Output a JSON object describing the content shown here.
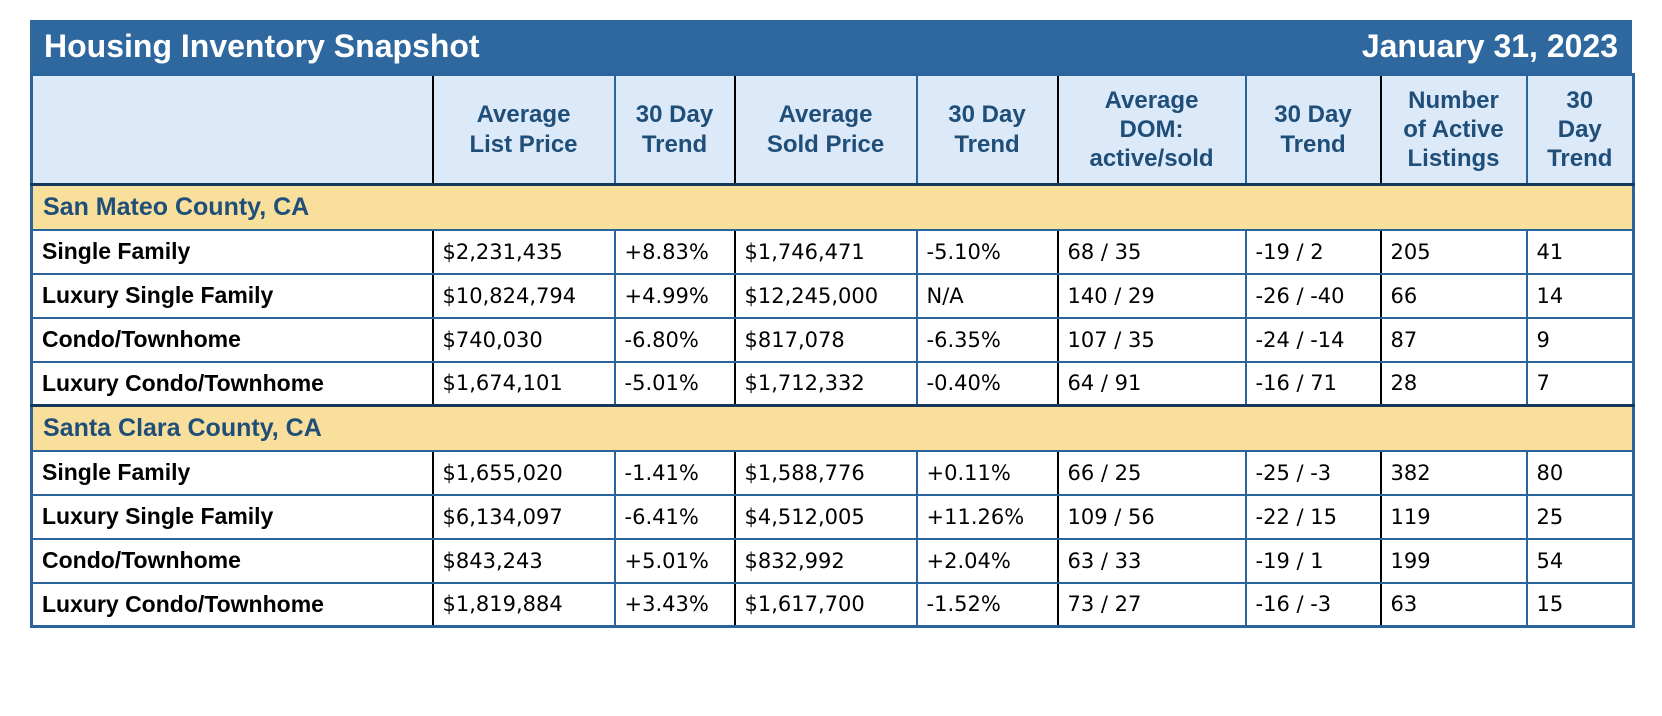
{
  "chart_data": {
    "type": "table",
    "title": "Housing Inventory Snapshot",
    "date": "January 31, 2023",
    "columns": [
      {
        "id": "property-type",
        "label": ""
      },
      {
        "id": "avg-list-price",
        "label": "Average\nList Price"
      },
      {
        "id": "list-price-trend",
        "label": "30 Day\nTrend"
      },
      {
        "id": "avg-sold-price",
        "label": "Average\nSold Price"
      },
      {
        "id": "sold-price-trend",
        "label": "30 Day\nTrend"
      },
      {
        "id": "avg-dom",
        "label": "Average\nDOM:\nactive/sold"
      },
      {
        "id": "dom-trend",
        "label": "30 Day\nTrend"
      },
      {
        "id": "active-listings",
        "label": "Number\nof Active\nListings"
      },
      {
        "id": "listings-trend",
        "label": "30\nDay\nTrend"
      }
    ],
    "sections": [
      {
        "name": "San Mateo County, CA",
        "rows": [
          {
            "label": "Single Family",
            "avg_list_price": "$2,231,435",
            "list_price_trend": "+8.83%",
            "avg_sold_price": "$1,746,471",
            "sold_price_trend": "-5.10%",
            "avg_dom_active_sold": "68 / 35",
            "dom_trend": "-19 / 2",
            "active_listings": "205",
            "listings_trend": "41"
          },
          {
            "label": "Luxury Single Family",
            "avg_list_price": "$10,824,794",
            "list_price_trend": "+4.99%",
            "avg_sold_price": "$12,245,000",
            "sold_price_trend": "N/A",
            "avg_dom_active_sold": "140 / 29",
            "dom_trend": "-26 / -40",
            "active_listings": "66",
            "listings_trend": "14"
          },
          {
            "label": "Condo/Townhome",
            "avg_list_price": "$740,030",
            "list_price_trend": "-6.80%",
            "avg_sold_price": "$817,078",
            "sold_price_trend": "-6.35%",
            "avg_dom_active_sold": "107 / 35",
            "dom_trend": "-24 / -14",
            "active_listings": "87",
            "listings_trend": "9"
          },
          {
            "label": "Luxury Condo/Townhome",
            "avg_list_price": "$1,674,101",
            "list_price_trend": "-5.01%",
            "avg_sold_price": "$1,712,332",
            "sold_price_trend": "-0.40%",
            "avg_dom_active_sold": "64 / 91",
            "dom_trend": "-16 / 71",
            "active_listings": "28",
            "listings_trend": "7"
          }
        ]
      },
      {
        "name": "Santa Clara County, CA",
        "rows": [
          {
            "label": "Single Family",
            "avg_list_price": "$1,655,020",
            "list_price_trend": "-1.41%",
            "avg_sold_price": "$1,588,776",
            "sold_price_trend": "+0.11%",
            "avg_dom_active_sold": "66 / 25",
            "dom_trend": "-25 / -3",
            "active_listings": "382",
            "listings_trend": "80"
          },
          {
            "label": "Luxury Single Family",
            "avg_list_price": "$6,134,097",
            "list_price_trend": "-6.41%",
            "avg_sold_price": "$4,512,005",
            "sold_price_trend": "+11.26%",
            "avg_dom_active_sold": "109 / 56",
            "dom_trend": "-22 / 15",
            "active_listings": "119",
            "listings_trend": "25"
          },
          {
            "label": "Condo/Townhome",
            "avg_list_price": "$843,243",
            "list_price_trend": "+5.01%",
            "avg_sold_price": "$832,992",
            "sold_price_trend": "+2.04%",
            "avg_dom_active_sold": "63 / 33",
            "dom_trend": "-19 / 1",
            "active_listings": "199",
            "listings_trend": "54"
          },
          {
            "label": "Luxury Condo/Townhome",
            "avg_list_price": "$1,819,884",
            "list_price_trend": "+3.43%",
            "avg_sold_price": "$1,617,700",
            "sold_price_trend": "-1.52%",
            "avg_dom_active_sold": "73 / 27",
            "dom_trend": "-16 / -3",
            "active_listings": "63",
            "listings_trend": "15"
          }
        ]
      }
    ],
    "colors": {
      "title_bar_bg": "#2E689E",
      "header_bg": "#DBE9F8",
      "section_bg": "#F8DF9B",
      "navy_text": "#1F4E79",
      "positive_trend": "#3A7D23",
      "negative_trend": "#F4392B",
      "grid_blue": "#2A649C",
      "group_separator": "#000000"
    },
    "layout": {
      "legend": "none",
      "grid": "on"
    }
  }
}
